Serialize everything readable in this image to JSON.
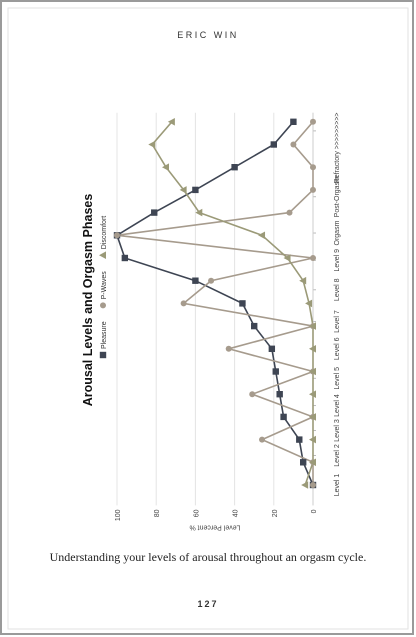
{
  "header": {
    "author": "ERIC WIN"
  },
  "chart_data": {
    "type": "line",
    "title": "Arousal Levels and Orgasm Phases",
    "y_label": "Level Percent %",
    "x": [
      0,
      1,
      2,
      3,
      4,
      5,
      6,
      7,
      8,
      9,
      10,
      11,
      12,
      13,
      14,
      15,
      16
    ],
    "xlim": [
      -0.9,
      16.4
    ],
    "xticks": [
      {
        "value": 0,
        "label": "Level 1"
      },
      {
        "value": 1.3,
        "label": "Level 2"
      },
      {
        "value": 2.4,
        "label": "Level 3"
      },
      {
        "value": 3.5,
        "label": "Level 4"
      },
      {
        "value": 4.7,
        "label": "Level 5"
      },
      {
        "value": 6,
        "label": "Level 6"
      },
      {
        "value": 7.2,
        "label": "Level 7"
      },
      {
        "value": 8.6,
        "label": "Level 8"
      },
      {
        "value": 9.9,
        "label": "Level 9"
      },
      {
        "value": 11.1,
        "label": "Orgasm"
      },
      {
        "value": 12.7,
        "label": "Post-Orgasm"
      },
      {
        "value": 14,
        "label": "Refractory"
      },
      {
        "value": 15.6,
        "label": ">>>>>>>>>"
      }
    ],
    "ylim": [
      0,
      100
    ],
    "yticks": [
      0,
      20,
      40,
      60,
      80,
      100
    ],
    "grid": true,
    "series": [
      {
        "name": "Pleasure",
        "color": "#3e4553",
        "marker": "square",
        "values": [
          0,
          5,
          7,
          15,
          17,
          19,
          21,
          30,
          36,
          60,
          96,
          100,
          81,
          60,
          40,
          20,
          10
        ]
      },
      {
        "name": "P-Waves",
        "color": "#a69b8d",
        "marker": "circle",
        "values": [
          0,
          0,
          26,
          0,
          31,
          0,
          43,
          0,
          66,
          52,
          0,
          100,
          12,
          0,
          0,
          10,
          0
        ]
      },
      {
        "name": "Discomfort",
        "color": "#9b9a78",
        "marker": "triangle",
        "values": [
          4,
          0,
          0,
          0,
          0,
          0,
          0,
          0,
          2,
          5,
          13,
          26,
          58,
          66,
          75,
          82,
          72
        ]
      }
    ]
  },
  "caption": "Understanding your levels of arousal throughout an orgasm cycle.",
  "page_number": "127"
}
